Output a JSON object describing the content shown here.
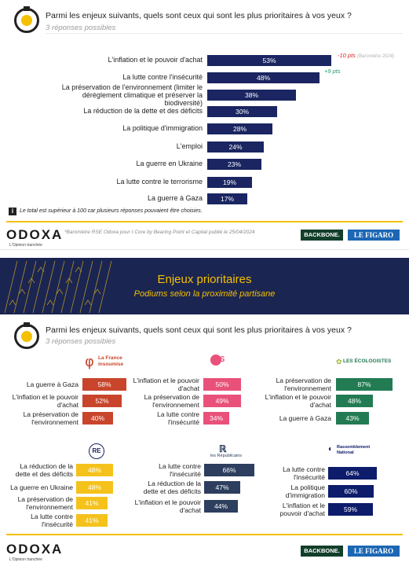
{
  "slide1": {
    "question": "Parmi les enjeux suivants, quels sont ceux qui sont les plus prioritaires à vos yeux ?",
    "subtitle": "3 réponses possibles",
    "footnote_icon": "i",
    "footnote": "Le total est supérieur à 100 car plusieurs réponses pouvaient être choisies.",
    "delta_1": "-10 pts",
    "delta_1_note": "(Baromètre 2024)",
    "delta_2": "+9 pts",
    "source": "*Baromètre RSE Odoxa pour I Core by Bearing Point et Capital publié le 25/04/2024"
  },
  "brand": {
    "name": "ODOXA",
    "tagline": "L'Opinion tranchée",
    "backbone": "BACKBONE.",
    "figaro": "LE FIGARO"
  },
  "banner": {
    "title": "Enjeux prioritaires",
    "subtitle": "Podiums selon la proximité partisane"
  },
  "slide2": {
    "question": "Parmi les enjeux suivants, quels sont ceux qui sont les plus prioritaires à vos yeux ?",
    "subtitle": "3 réponses possibles"
  },
  "parties": {
    "lfi_line1": "La France",
    "lfi_line2": "insoumise",
    "ps": "PS",
    "eco": "LES ÉCOLOGISTES",
    "re": "RE",
    "lr": "les Républicains",
    "rn_line1": "Rassemblement",
    "rn_line2": "National"
  },
  "colors": {
    "navy": "#1a2561",
    "yellow": "#f5c000",
    "lfi": "#c8452c",
    "ps": "#e9517a",
    "eco": "#237b53",
    "re": "#f5c21b",
    "lr": "#2d3e5e",
    "rn": "#0d1c6b",
    "negative": "#e0202c",
    "positive": "#1e9a6e"
  },
  "chart_data": [
    {
      "type": "bar",
      "orientation": "horizontal",
      "categories": [
        "L'inflation et le pouvoir d'achat",
        "La lutte contre l'insécurité",
        "La préservation de l'environnement (limiter le dérèglement climatique et préserver la biodiversité)",
        "La réduction de la dette et des déficits",
        "La politique d'immigration",
        "L'emploi",
        "La guerre en Ukraine",
        "La lutte contre le terrorisme",
        "La guerre à Gaza"
      ],
      "values": [
        53,
        48,
        38,
        30,
        28,
        24,
        23,
        19,
        17
      ],
      "value_labels": [
        "53%",
        "48%",
        "38%",
        "30%",
        "28%",
        "24%",
        "23%",
        "19%",
        "17%"
      ],
      "title": "Parmi les enjeux suivants, quels sont ceux qui sont les plus prioritaires à vos yeux ?",
      "xlim": [
        0,
        60
      ]
    },
    {
      "type": "bar",
      "party": "La France insoumise",
      "categories": [
        "La guerre à Gaza",
        "L'inflation et le pouvoir d'achat",
        "La préservation de l'environnement"
      ],
      "values": [
        58,
        52,
        40
      ],
      "value_labels": [
        "58%",
        "52%",
        "40%"
      ]
    },
    {
      "type": "bar",
      "party": "PS",
      "categories": [
        "L'inflation et le pouvoir d'achat",
        "La préservation de l'environnement",
        "La lutte contre l'insécurité"
      ],
      "values": [
        50,
        49,
        34
      ],
      "value_labels": [
        "50%",
        "49%",
        "34%"
      ]
    },
    {
      "type": "bar",
      "party": "Les Écologistes",
      "categories": [
        "La préservation de l'environnement",
        "L'inflation et le pouvoir d'achat",
        "La guerre à Gaza"
      ],
      "values": [
        87,
        48,
        43
      ],
      "value_labels": [
        "87%",
        "48%",
        "43%"
      ]
    },
    {
      "type": "bar",
      "party": "Renaissance",
      "categories": [
        "La réduction de la dette et des déficits",
        "La guerre en Ukraine",
        "La préservation de l'environnement",
        "La lutte contre l'insécurité"
      ],
      "values": [
        48,
        48,
        41,
        41
      ],
      "value_labels": [
        "48%",
        "48%",
        "41%",
        "41%"
      ]
    },
    {
      "type": "bar",
      "party": "Les Républicains",
      "categories": [
        "La lutte contre l'insécurité",
        "La réduction de la dette et des déficits",
        "L'inflation et le pouvoir d'achat"
      ],
      "values": [
        66,
        47,
        44
      ],
      "value_labels": [
        "66%",
        "47%",
        "44%"
      ]
    },
    {
      "type": "bar",
      "party": "Rassemblement National",
      "categories": [
        "La lutte contre l'insécurité",
        "La politique d'immigration",
        "L'inflation et le pouvoir d'achat"
      ],
      "values": [
        64,
        60,
        59
      ],
      "value_labels": [
        "64%",
        "60%",
        "59%"
      ]
    }
  ]
}
